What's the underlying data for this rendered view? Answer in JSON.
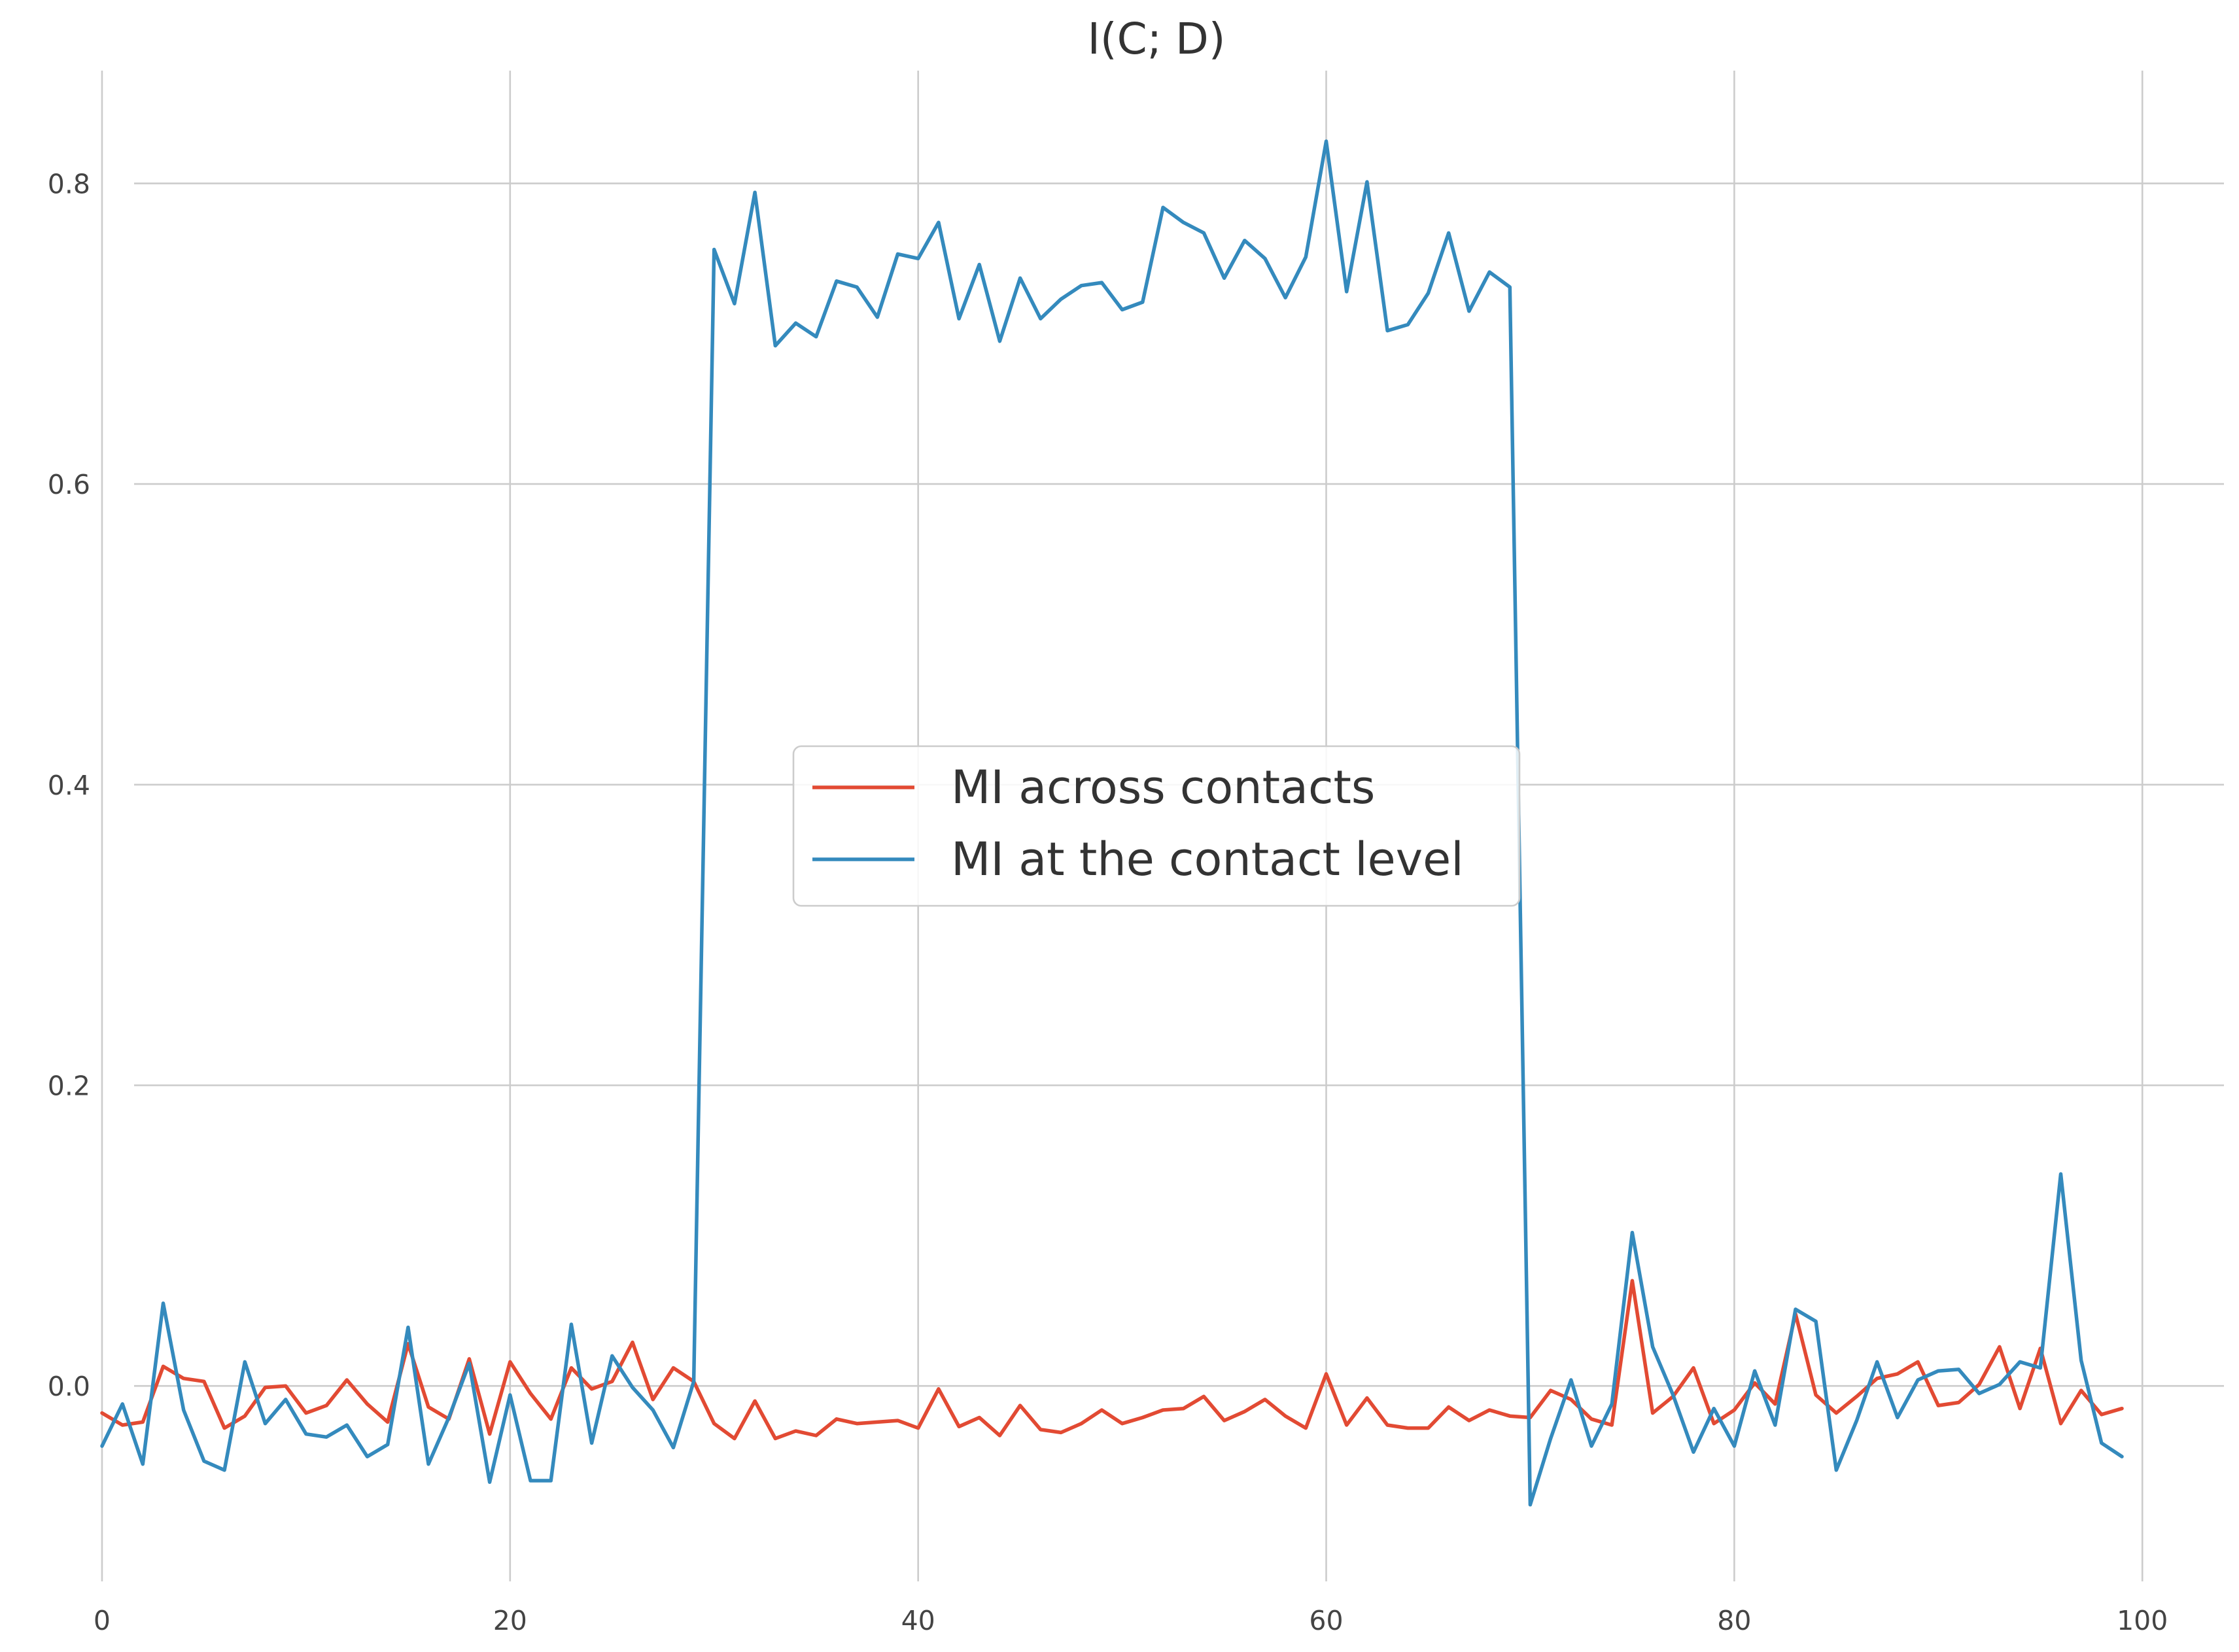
{
  "chart_data": {
    "type": "line",
    "title": "I(C; D)",
    "xlabel": "",
    "ylabel": "",
    "xlim": [
      -5,
      104
    ],
    "ylim": [
      -0.13,
      0.875
    ],
    "xticks": [
      0,
      20,
      40,
      60,
      80,
      100
    ],
    "yticks": [
      0.0,
      0.2,
      0.4,
      0.6,
      0.8
    ],
    "xtick_labels": [
      "0",
      "20",
      "40",
      "60",
      "80",
      "100"
    ],
    "ytick_labels": [
      "0.0",
      "0.2",
      "0.4",
      "0.6",
      "0.8"
    ],
    "grid": true,
    "legend_position": "center",
    "x": [
      0,
      1,
      2,
      3,
      4,
      5,
      6,
      7,
      8,
      9,
      10,
      11,
      12,
      13,
      14,
      15,
      16,
      17,
      18,
      19,
      20,
      21,
      22,
      23,
      24,
      25,
      26,
      27,
      28,
      29,
      30,
      31,
      32,
      33,
      34,
      35,
      36,
      37,
      38,
      39,
      40,
      41,
      42,
      43,
      44,
      45,
      46,
      47,
      48,
      49,
      50,
      51,
      52,
      53,
      54,
      55,
      56,
      57,
      58,
      59,
      60,
      61,
      62,
      63,
      64,
      65,
      66,
      67,
      68,
      69,
      70,
      71,
      72,
      73,
      74,
      75,
      76,
      77,
      78,
      79,
      80,
      81,
      82,
      83,
      84,
      85,
      86,
      87,
      88,
      89,
      90,
      91,
      92,
      93,
      94,
      95,
      96,
      97,
      98,
      99
    ],
    "series": [
      {
        "name": "MI across contacts",
        "color": "#e24a33",
        "values": [
          -0.018,
          -0.026,
          -0.024,
          0.013,
          0.005,
          0.003,
          -0.028,
          -0.02,
          -0.001,
          0.0,
          -0.018,
          -0.013,
          0.004,
          -0.012,
          -0.024,
          0.028,
          -0.014,
          -0.022,
          0.018,
          -0.032,
          0.016,
          -0.005,
          -0.022,
          0.012,
          -0.002,
          0.003,
          0.029,
          -0.009,
          0.012,
          0.003,
          -0.025,
          -0.035,
          -0.01,
          -0.035,
          -0.03,
          -0.033,
          -0.022,
          -0.025,
          -0.024,
          -0.023,
          -0.028,
          -0.002,
          -0.027,
          -0.021,
          -0.033,
          -0.013,
          -0.029,
          -0.031,
          -0.025,
          -0.016,
          -0.025,
          -0.021,
          -0.016,
          -0.015,
          -0.007,
          -0.023,
          -0.017,
          -0.009,
          -0.02,
          -0.028,
          0.008,
          -0.026,
          -0.008,
          -0.026,
          -0.028,
          -0.028,
          -0.014,
          -0.023,
          -0.016,
          -0.02,
          -0.021,
          -0.003,
          -0.009,
          -0.022,
          -0.026,
          0.07,
          -0.018,
          -0.007,
          0.012,
          -0.025,
          -0.016,
          0.002,
          -0.012,
          0.048,
          -0.006,
          -0.018,
          -0.007,
          0.005,
          0.008,
          0.016,
          -0.013,
          -0.011,
          0.001,
          0.026,
          -0.015,
          0.025,
          -0.025,
          -0.003,
          -0.019,
          -0.015
        ]
      },
      {
        "name": "MI at the contact level",
        "color": "#348abd",
        "values": [
          -0.04,
          -0.012,
          -0.052,
          0.055,
          -0.016,
          -0.05,
          -0.056,
          0.016,
          -0.025,
          -0.009,
          -0.032,
          -0.034,
          -0.026,
          -0.047,
          -0.039,
          0.039,
          -0.052,
          -0.021,
          0.015,
          -0.064,
          -0.006,
          -0.063,
          -0.063,
          0.041,
          -0.038,
          0.02,
          -0.001,
          -0.016,
          -0.041,
          0.003,
          0.756,
          0.72,
          0.794,
          0.692,
          0.707,
          0.698,
          0.735,
          0.731,
          0.711,
          0.753,
          0.75,
          0.774,
          0.71,
          0.746,
          0.695,
          0.737,
          0.71,
          0.723,
          0.732,
          0.734,
          0.716,
          0.721,
          0.784,
          0.774,
          0.767,
          0.737,
          0.762,
          0.75,
          0.724,
          0.751,
          0.828,
          0.728,
          0.801,
          0.702,
          0.706,
          0.727,
          0.767,
          0.715,
          0.741,
          0.731,
          -0.079,
          -0.035,
          0.004,
          -0.04,
          -0.012,
          0.102,
          0.026,
          -0.006,
          -0.044,
          -0.015,
          -0.04,
          0.01,
          -0.026,
          0.051,
          0.043,
          -0.056,
          -0.023,
          0.016,
          -0.021,
          0.004,
          0.01,
          0.011,
          -0.005,
          0.001,
          0.016,
          0.012,
          0.141,
          0.017,
          -0.038,
          -0.047
        ]
      }
    ]
  }
}
